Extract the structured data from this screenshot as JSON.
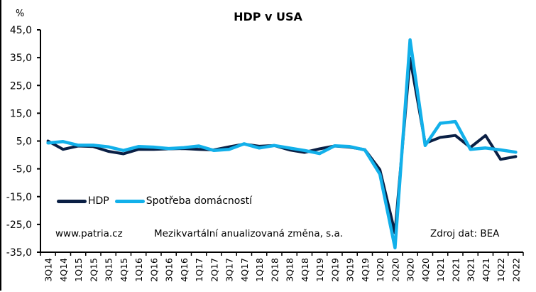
{
  "chart": {
    "title": "HDP v USA",
    "unit": "%",
    "source_site": "www.patria.cz",
    "subtitle_note": "Mezikvartální anualizovaná změna, s.a.",
    "source_note": "Zdroj dat: BEA",
    "legend": [
      "HDP",
      "Spotřeba domácností"
    ],
    "colors": {
      "HDP": "#0a1f44",
      "Spotřeba domácností": "#12b0ea"
    }
  },
  "chart_data": {
    "type": "line",
    "title": "HDP v USA",
    "xlabel": "",
    "ylabel": "%",
    "ylim": [
      -35,
      45
    ],
    "yticks": [
      "45,0",
      "35,0",
      "25,0",
      "15,0",
      "5,0",
      "-5,0",
      "-15,0",
      "-25,0",
      "-35,0"
    ],
    "grid": false,
    "legend_position": "lower-left inside",
    "categories": [
      "3Q14",
      "4Q14",
      "1Q15",
      "2Q15",
      "3Q15",
      "4Q15",
      "1Q16",
      "2Q16",
      "3Q16",
      "4Q16",
      "1Q17",
      "2Q17",
      "3Q17",
      "4Q17",
      "1Q18",
      "2Q18",
      "3Q18",
      "4Q18",
      "1Q19",
      "2Q19",
      "3Q19",
      "4Q19",
      "1Q20",
      "2Q20",
      "3Q20",
      "4Q20",
      "1Q21",
      "2Q21",
      "3Q21",
      "4Q21",
      "1Q22",
      "2Q22"
    ],
    "series": [
      {
        "name": "HDP",
        "color": "#0a1f44",
        "values": [
          5.0,
          2.0,
          3.2,
          3.0,
          1.3,
          0.4,
          2.0,
          2.0,
          2.2,
          2.3,
          2.0,
          1.8,
          2.9,
          3.9,
          3.1,
          3.4,
          1.8,
          0.9,
          2.2,
          3.2,
          2.8,
          1.9,
          -5.3,
          -28.0,
          34.8,
          4.2,
          6.3,
          7.0,
          2.7,
          7.0,
          -1.6,
          -0.6
        ]
      },
      {
        "name": "Spotřeba domácností",
        "color": "#12b0ea",
        "values": [
          4.3,
          4.8,
          3.5,
          3.5,
          2.9,
          1.6,
          3.0,
          2.8,
          2.3,
          2.6,
          3.2,
          1.6,
          2.0,
          4.0,
          2.5,
          3.4,
          2.5,
          1.6,
          0.5,
          3.3,
          3.0,
          1.8,
          -6.9,
          -33.4,
          41.4,
          3.4,
          11.4,
          12.0,
          2.0,
          2.5,
          1.8,
          1.0
        ]
      }
    ],
    "annotations": [
      "www.patria.cz",
      "Mezikvartální anualizovaná změna, s.a.",
      "Zdroj dat: BEA"
    ]
  }
}
